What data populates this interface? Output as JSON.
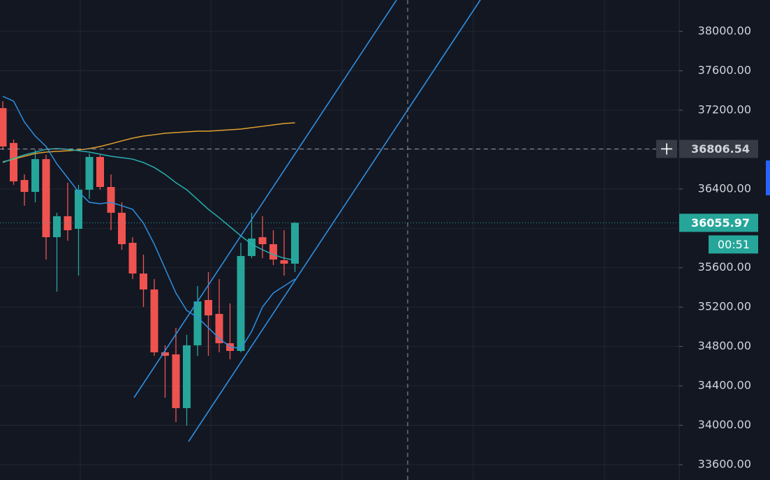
{
  "chart_data": {
    "type": "candlestick",
    "up_color": "#26a69a",
    "down_color": "#ef5350",
    "open": [
      37221,
      36867,
      36491,
      36370,
      36703,
      35910,
      36123,
      35995,
      36392,
      36725,
      36420,
      36158,
      35853,
      35541,
      35379,
      34741,
      34720,
      34174,
      34812,
      35272,
      35131,
      34833,
      34755,
      35719,
      35910,
      35839,
      35676,
      35641
    ],
    "high": [
      37291,
      36902,
      36548,
      36796,
      36746,
      36158,
      36463,
      36441,
      36760,
      36746,
      36548,
      36264,
      35910,
      35733,
      35485,
      34812,
      34989,
      34918,
      35414,
      35556,
      35485,
      35237,
      35853,
      36158,
      36123,
      35981,
      35981,
      36063
    ],
    "low": [
      36796,
      36442,
      36229,
      36264,
      35683,
      35357,
      35874,
      35520,
      36300,
      36392,
      35981,
      35782,
      35485,
      35201,
      34705,
      34280,
      34032,
      33997,
      34705,
      34705,
      34741,
      34670,
      34741,
      35697,
      35697,
      35627,
      35520,
      35556
    ],
    "close": [
      36831,
      36477,
      36370,
      36703,
      35910,
      36123,
      35981,
      36392,
      36725,
      36420,
      36158,
      35839,
      35541,
      35379,
      34741,
      34705,
      34174,
      34812,
      35258,
      35116,
      34833,
      34755,
      35719,
      35896,
      35839,
      35683,
      35641,
      36055.97
    ],
    "overlays": [
      {
        "color": "#e0a030",
        "values": [
          36675,
          36703,
          36732,
          36760,
          36774,
          36781,
          36788,
          36796,
          36810,
          36831,
          36859,
          36888,
          36916,
          36937,
          36951,
          36966,
          36973,
          36980,
          36987,
          36987,
          36994,
          37001,
          37008,
          37022,
          37036,
          37051,
          37065,
          37072
        ]
      },
      {
        "color": "#26b0b0",
        "values": [
          36668,
          36711,
          36746,
          36774,
          36803,
          36810,
          36803,
          36788,
          36774,
          36753,
          36732,
          36718,
          36703,
          36668,
          36618,
          36548,
          36463,
          36392,
          36293,
          36193,
          36108,
          36016,
          35924,
          35839,
          35782,
          35733,
          35697,
          35676
        ]
      },
      {
        "color": "#2e8fe0",
        "values": [
          37341,
          37292,
          37079,
          36937,
          36831,
          36654,
          36512,
          36370,
          36264,
          36250,
          36264,
          36229,
          36193,
          36052,
          35839,
          35591,
          35343,
          35166,
          35095,
          34989,
          34883,
          34798,
          34776,
          34953,
          35201,
          35343,
          35414,
          35485
        ]
      }
    ],
    "ylim": [
      33444,
      38319
    ],
    "yticks": [
      {
        "value": 38000,
        "label": "38000.00"
      },
      {
        "value": 37600,
        "label": "37600.00"
      },
      {
        "value": 37200,
        "label": "37200.00"
      },
      {
        "value": 36400,
        "label": "36400.00"
      },
      {
        "value": 35600,
        "label": "35600.00"
      },
      {
        "value": 35200,
        "label": "35200.00"
      },
      {
        "value": 34800,
        "label": "34800.00"
      },
      {
        "value": 34400,
        "label": "34400.00"
      },
      {
        "value": 34000,
        "label": "34000.00"
      },
      {
        "value": 33600,
        "label": "33600.00"
      }
    ],
    "grid_ticks": [
      38000,
      37600,
      37200,
      36800,
      36400,
      36000,
      35600,
      35200,
      34800,
      34400,
      34000,
      33600
    ],
    "crosshair_price": 36806.54,
    "last_price": 36055.97,
    "countdown": "00:51"
  }
}
